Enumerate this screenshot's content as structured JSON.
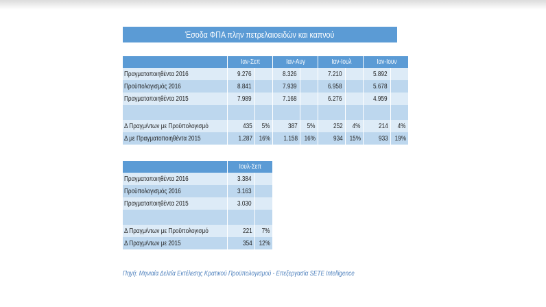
{
  "title": "Έσοδα ΦΠΑ πλην πετρελαιοειδών και καπνού",
  "table1": {
    "columns": [
      "Ιαν-Σεπ",
      "Ιαν-Αυγ",
      "Ιαν-Ιουλ",
      "Ιαν-Ιουν"
    ],
    "rows": [
      {
        "label": "Πραγματοποιηθέντα 2016",
        "values": [
          "9.276",
          "",
          "8.326",
          "",
          "7.210",
          "",
          "5.892",
          ""
        ]
      },
      {
        "label": "Προϋπολογισμός 2016",
        "values": [
          "8.841",
          "",
          "7.939",
          "",
          "6.958",
          "",
          "5.678",
          ""
        ]
      },
      {
        "label": "Πραγματοποιηθέντα 2015",
        "values": [
          "7.989",
          "",
          "7.168",
          "",
          "6.276",
          "",
          "4.959",
          ""
        ]
      },
      {
        "label": "",
        "values": [
          "",
          "",
          "",
          "",
          "",
          "",
          "",
          ""
        ]
      },
      {
        "label": "Δ Πραγμ/ντων με Προϋπολογισμό",
        "values": [
          "435",
          "5%",
          "387",
          "5%",
          "252",
          "4%",
          "214",
          "4%"
        ]
      },
      {
        "label": "Δ με Πραγματοποιηθέντα 2015",
        "values": [
          "1.287",
          "16%",
          "1.158",
          "16%",
          "934",
          "15%",
          "933",
          "19%"
        ]
      }
    ]
  },
  "table2": {
    "columns": [
      "Ιουλ-Σεπ"
    ],
    "rows": [
      {
        "label": "Πραγματοποιηθέντα 2016",
        "values": [
          "3.384",
          ""
        ]
      },
      {
        "label": "Προϋπολογισμός 2016",
        "values": [
          "3.163",
          ""
        ]
      },
      {
        "label": "Πραγματοποιηθέντα 2015",
        "values": [
          "3.030",
          ""
        ]
      },
      {
        "label": "",
        "values": [
          "",
          ""
        ]
      },
      {
        "label": "Δ Πραγμ/ντων με Προϋπολογισμό",
        "values": [
          "221",
          "7%"
        ]
      },
      {
        "label": "Δ Πραγμ/ντων με 2015",
        "values": [
          "354",
          "12%"
        ]
      }
    ]
  },
  "source": "Πηγή: Μηνιαία Δελτία Εκτέλεσης Κρατικού Προϋπολογισμού - Επεξεργασία SETE Intelligence",
  "colors": {
    "header": "#5b9bd5",
    "row_light": "#ddebf7",
    "row_dark": "#bdd7ee",
    "source_text": "#4f81bd"
  }
}
